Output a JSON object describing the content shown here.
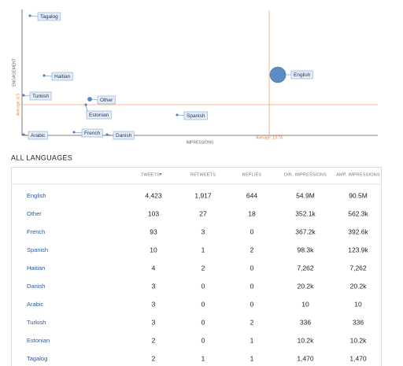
{
  "chart": {
    "y_label": "ENGAGEMENT",
    "x_label": "IMPRESSIONS",
    "y_average": "Average: 6.5",
    "x_average": "Average: 19.74",
    "points": [
      "Tagalog",
      "Haitian",
      "Turkish",
      "Other",
      "Estonian",
      "Spanish",
      "English",
      "Arabic",
      "French",
      "Danish"
    ]
  },
  "section_title": "ALL LANGUAGES",
  "table": {
    "columns": [
      "TWEETS",
      "RETWEETS",
      "REPLIES",
      "DIR. IMPRESSIONS",
      "AMP. IMPRESSIONS"
    ],
    "rows": [
      [
        "English",
        "4,423",
        "1,917",
        "644",
        "54.9M",
        "90.5M"
      ],
      [
        "Other",
        "103",
        "27",
        "18",
        "352.1k",
        "562.3k"
      ],
      [
        "French",
        "93",
        "3",
        "0",
        "367.2k",
        "392.6k"
      ],
      [
        "Spanish",
        "10",
        "1",
        "2",
        "98.3k",
        "123.9k"
      ],
      [
        "Haitian",
        "4",
        "2",
        "0",
        "7,262",
        "7,262"
      ],
      [
        "Danish",
        "3",
        "0",
        "0",
        "20.2k",
        "20.2k"
      ],
      [
        "Arabic",
        "3",
        "0",
        "0",
        "10",
        "10"
      ],
      [
        "Turkish",
        "3",
        "0",
        "2",
        "336",
        "336"
      ],
      [
        "Estonian",
        "2",
        "0",
        "1",
        "10.2k",
        "10.2k"
      ],
      [
        "Tagalog",
        "2",
        "1",
        "1",
        "1,470",
        "1,470"
      ]
    ]
  }
}
